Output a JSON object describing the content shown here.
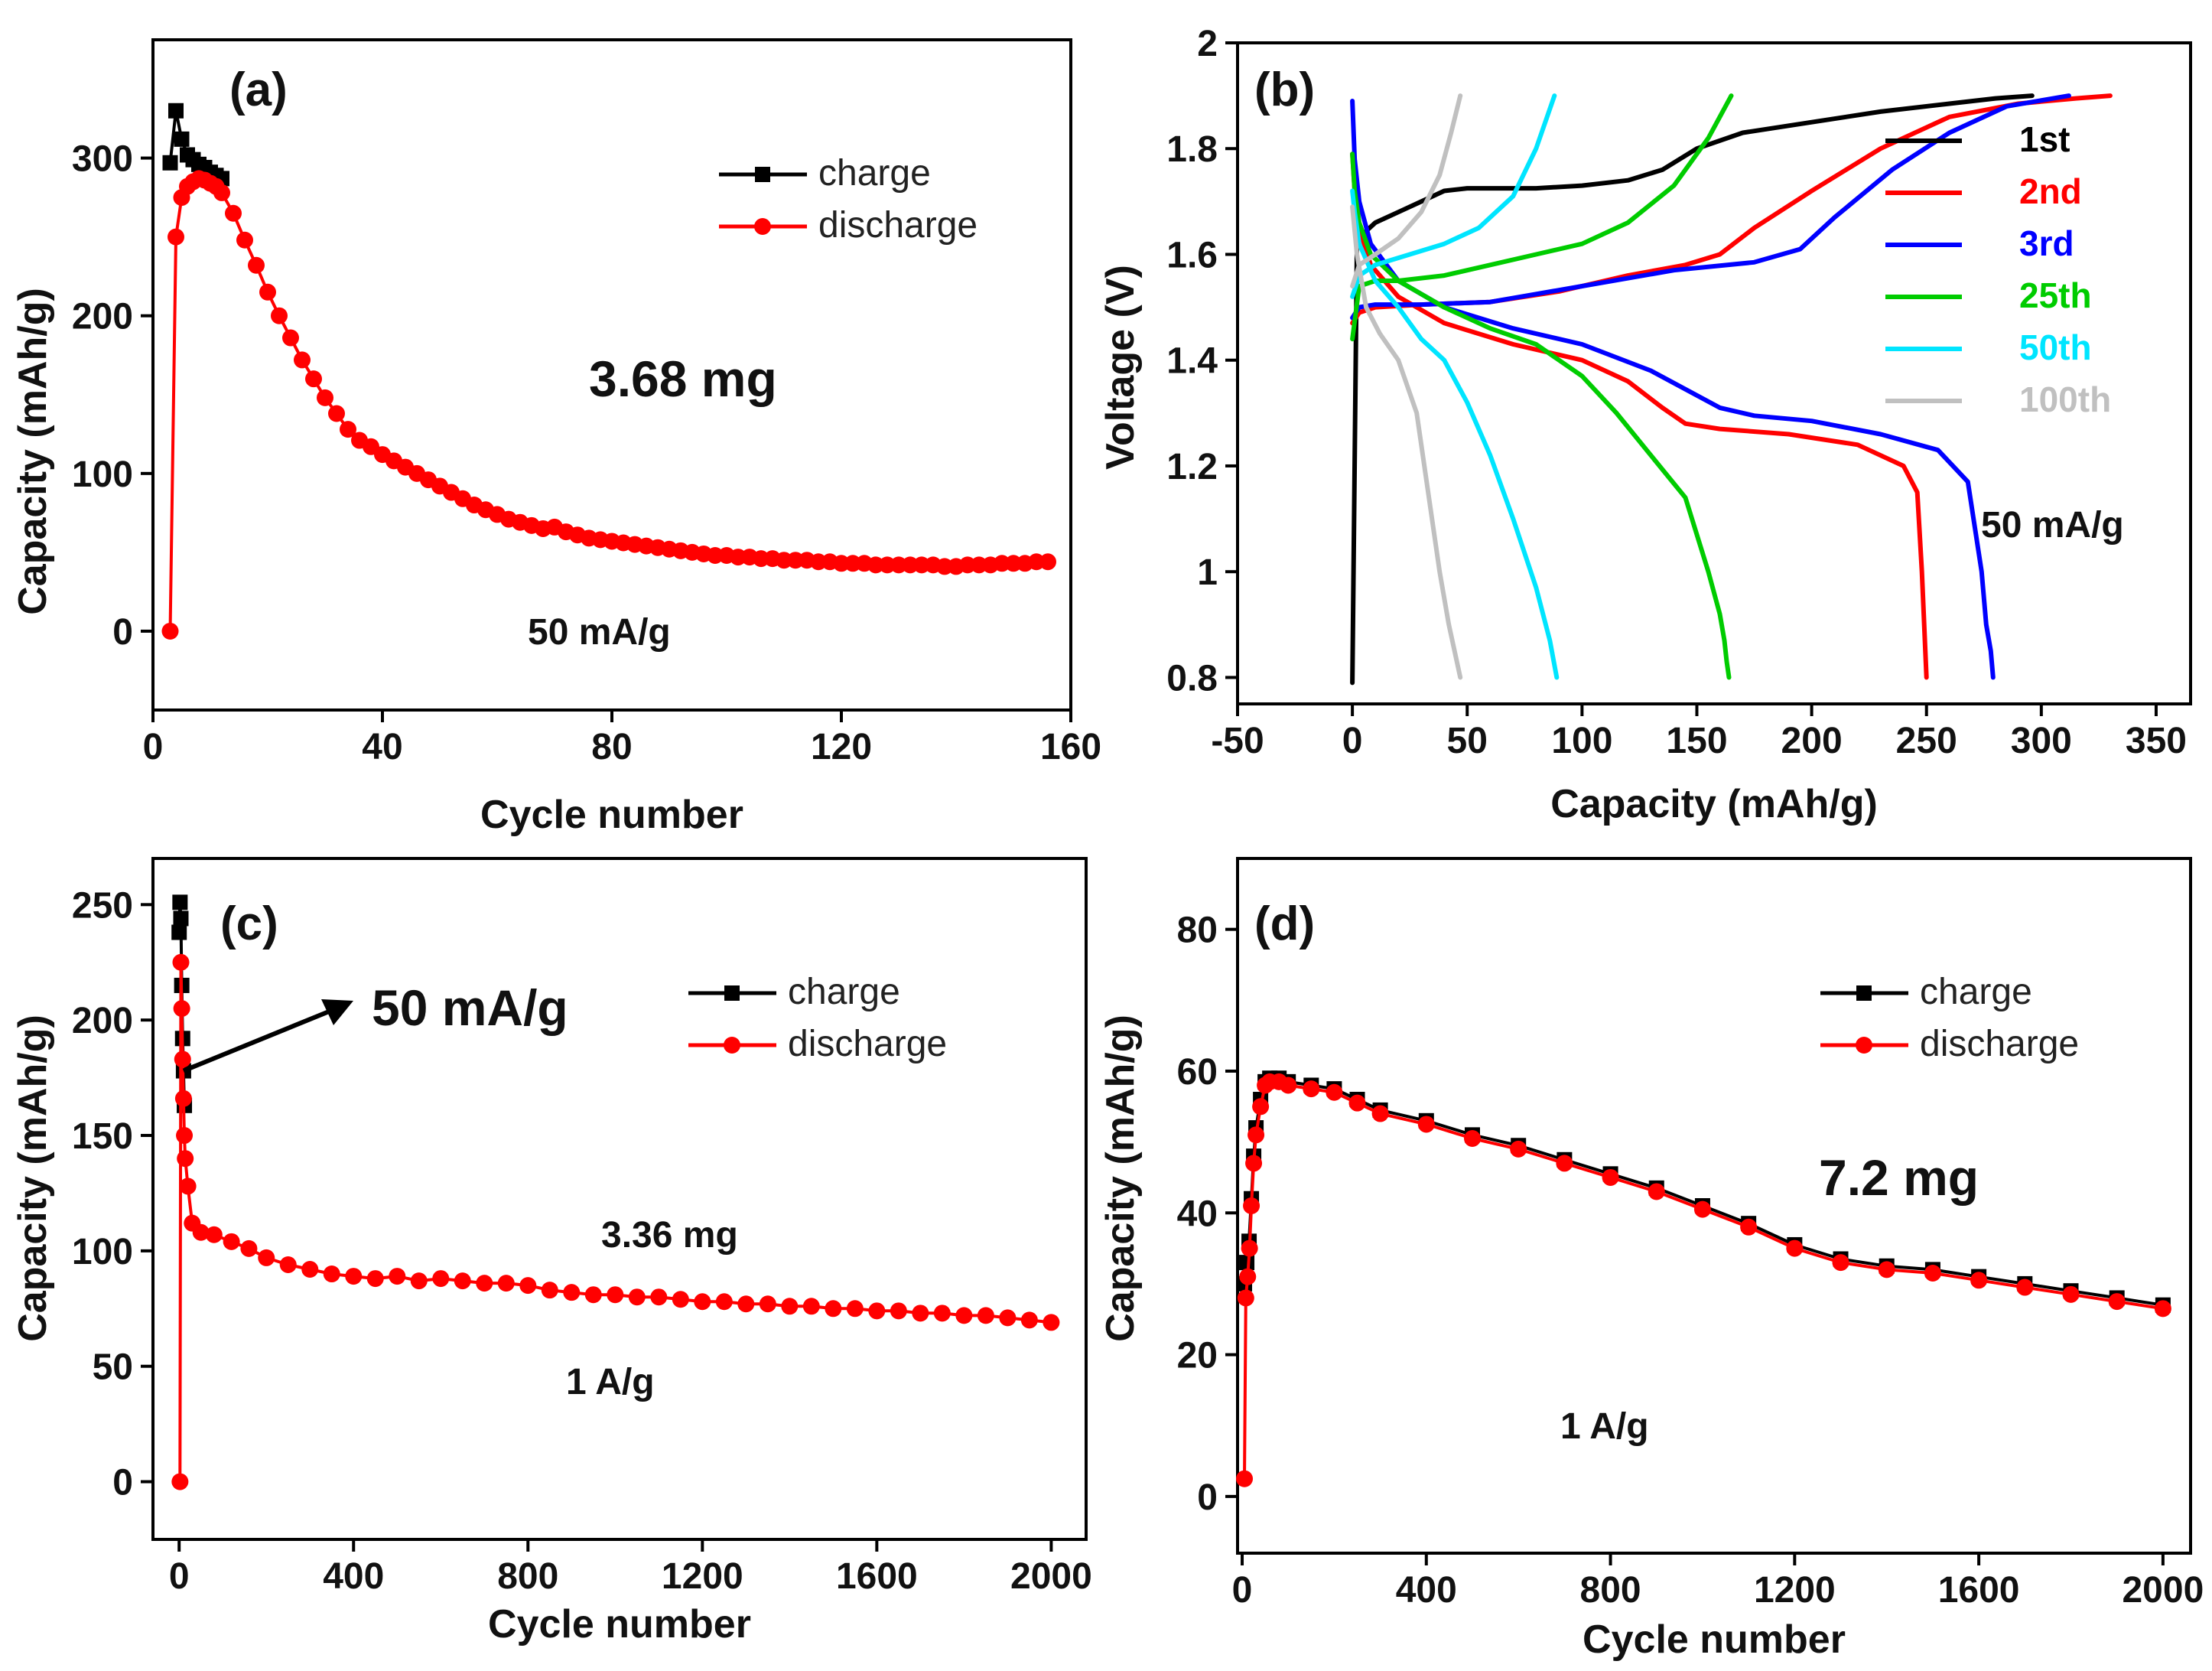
{
  "chart_data": [
    {
      "id": "a",
      "type": "scatter",
      "panel_label": "(a)",
      "xlabel": "Cycle number",
      "ylabel": "Capacity (mAh/g)",
      "xlim": [
        0,
        160
      ],
      "ylim": [
        -50,
        375
      ],
      "xticks": [
        0,
        40,
        80,
        120,
        160
      ],
      "yticks": [
        0,
        100,
        200,
        300
      ],
      "legend": [
        "charge",
        "discharge"
      ],
      "legend_position": "top-right",
      "annotations": [
        "3.68  mg",
        "50 mA/g"
      ],
      "series": [
        {
          "name": "charge",
          "color": "#000000",
          "marker": "square",
          "x": [
            3,
            4,
            5,
            6,
            7,
            8,
            9,
            10,
            11,
            12
          ],
          "y": [
            297,
            330,
            312,
            302,
            299,
            296,
            294,
            291,
            289,
            287
          ]
        },
        {
          "name": "discharge",
          "color": "#ff0000",
          "marker": "circle",
          "x": [
            3,
            4,
            5,
            6,
            7,
            8,
            9,
            10,
            11,
            12,
            14,
            16,
            18,
            20,
            22,
            24,
            26,
            28,
            30,
            32,
            34,
            36,
            38,
            40,
            42,
            44,
            46,
            48,
            50,
            52,
            54,
            56,
            58,
            60,
            62,
            64,
            66,
            68,
            70,
            72,
            74,
            76,
            78,
            80,
            82,
            84,
            86,
            88,
            90,
            92,
            94,
            96,
            98,
            100,
            102,
            104,
            106,
            108,
            110,
            112,
            114,
            116,
            118,
            120,
            122,
            124,
            126,
            128,
            130,
            132,
            134,
            136,
            138,
            140,
            142,
            144,
            146,
            148,
            150,
            152,
            154,
            156
          ],
          "y": [
            0,
            250,
            275,
            282,
            285,
            287,
            286,
            284,
            282,
            278,
            265,
            248,
            232,
            215,
            200,
            186,
            172,
            160,
            148,
            138,
            128,
            121,
            117,
            112,
            108,
            104,
            100,
            96,
            92,
            88,
            84,
            80,
            77,
            74,
            71,
            69,
            67,
            65,
            66,
            63,
            61,
            59,
            58,
            57,
            56,
            55,
            54,
            53,
            52,
            51,
            50,
            49,
            48,
            48,
            47,
            47,
            46,
            46,
            45,
            45,
            45,
            44,
            44,
            43,
            43,
            43,
            42,
            42,
            42,
            42,
            42,
            42,
            41,
            41,
            42,
            42,
            42,
            43,
            43,
            43,
            44,
            44
          ]
        }
      ]
    },
    {
      "id": "b",
      "type": "line",
      "panel_label": "(b)",
      "xlabel": "Capacity  (mAh/g)",
      "ylabel": "Voltage (V)",
      "xlim": [
        -50,
        365
      ],
      "ylim": [
        0.75,
        2.0
      ],
      "xticks": [
        -50,
        0,
        50,
        100,
        150,
        200,
        250,
        300,
        350
      ],
      "yticks": [
        0.8,
        1.0,
        1.2,
        1.4,
        1.6,
        1.8,
        2.0
      ],
      "annotations": [
        "50 mA/g"
      ],
      "legend_position": "right",
      "series": [
        {
          "name": "1st",
          "color": "#000000",
          "charge": {
            "x": [
              0,
              2,
              5,
              10,
              20,
              30,
              40,
              50,
              60,
              80,
              100,
              120,
              135,
              150,
              170,
              200,
              230,
              260,
              280,
              296
            ],
            "y": [
              0.79,
              1.62,
              1.64,
              1.66,
              1.68,
              1.7,
              1.72,
              1.725,
              1.725,
              1.725,
              1.73,
              1.74,
              1.76,
              1.8,
              1.83,
              1.85,
              1.87,
              1.885,
              1.895,
              1.9
            ]
          },
          "discharge": {
            "x": [],
            "y": []
          }
        },
        {
          "name": "2nd",
          "color": "#ff0000",
          "charge": {
            "x": [
              0,
              3,
              10,
              30,
              60,
              90,
              120,
              145,
              160,
              175,
              200,
              230,
              260,
              290,
              315,
              330
            ],
            "y": [
              1.47,
              1.49,
              1.5,
              1.505,
              1.51,
              1.53,
              1.56,
              1.58,
              1.6,
              1.65,
              1.72,
              1.8,
              1.86,
              1.885,
              1.895,
              1.9
            ]
          },
          "discharge": {
            "x": [
              0,
              1,
              3,
              8,
              20,
              40,
              70,
              100,
              120,
              135,
              145,
              160,
              190,
              220,
              240,
              246,
              248,
              249,
              250
            ],
            "y": [
              1.79,
              1.72,
              1.65,
              1.58,
              1.52,
              1.47,
              1.43,
              1.4,
              1.36,
              1.31,
              1.28,
              1.27,
              1.26,
              1.24,
              1.2,
              1.15,
              1.0,
              0.9,
              0.8
            ]
          }
        },
        {
          "name": "3rd",
          "color": "#0000ff",
          "charge": {
            "x": [
              0,
              3,
              10,
              30,
              60,
              100,
              140,
              175,
              195,
              210,
              235,
              260,
              285,
              312
            ],
            "y": [
              1.48,
              1.5,
              1.505,
              1.505,
              1.51,
              1.54,
              1.57,
              1.585,
              1.61,
              1.67,
              1.76,
              1.83,
              1.88,
              1.9
            ]
          },
          "discharge": {
            "x": [
              0,
              1,
              3,
              8,
              20,
              40,
              70,
              100,
              130,
              160,
              175,
              200,
              230,
              255,
              268,
              274,
              276,
              278,
              279
            ],
            "y": [
              1.89,
              1.78,
              1.7,
              1.62,
              1.55,
              1.5,
              1.46,
              1.43,
              1.38,
              1.31,
              1.295,
              1.285,
              1.26,
              1.23,
              1.17,
              1.0,
              0.9,
              0.85,
              0.8
            ]
          }
        },
        {
          "name": "25th",
          "color": "#00cc00",
          "charge": {
            "x": [
              0,
              3,
              10,
              20,
              40,
              60,
              80,
              100,
              120,
              140,
              155,
              165
            ],
            "y": [
              1.44,
              1.54,
              1.55,
              1.55,
              1.56,
              1.58,
              1.6,
              1.62,
              1.66,
              1.73,
              1.82,
              1.9
            ]
          },
          "discharge": {
            "x": [
              0,
              1,
              3,
              8,
              20,
              40,
              60,
              80,
              100,
              115,
              130,
              145,
              155,
              160,
              162,
              163,
              164
            ],
            "y": [
              1.79,
              1.72,
              1.66,
              1.6,
              1.55,
              1.5,
              1.46,
              1.43,
              1.37,
              1.3,
              1.22,
              1.14,
              1.0,
              0.92,
              0.87,
              0.83,
              0.8
            ]
          }
        },
        {
          "name": "50th",
          "color": "#00e5ff",
          "charge": {
            "x": [
              0,
              3,
              10,
              25,
              40,
              55,
              70,
              80,
              88
            ],
            "y": [
              1.52,
              1.56,
              1.58,
              1.6,
              1.62,
              1.65,
              1.71,
              1.8,
              1.9
            ]
          },
          "discharge": {
            "x": [
              0,
              1,
              3,
              10,
              20,
              30,
              40,
              50,
              60,
              70,
              80,
              86,
              89
            ],
            "y": [
              1.72,
              1.68,
              1.62,
              1.55,
              1.5,
              1.44,
              1.4,
              1.32,
              1.22,
              1.1,
              0.97,
              0.87,
              0.8
            ]
          }
        },
        {
          "name": "100th",
          "color": "#c0c0c0",
          "charge": {
            "x": [
              0,
              3,
              10,
              20,
              30,
              38,
              43,
              47
            ],
            "y": [
              1.54,
              1.58,
              1.6,
              1.63,
              1.68,
              1.75,
              1.83,
              1.9
            ]
          },
          "discharge": {
            "x": [
              0,
              2,
              6,
              12,
              20,
              28,
              33,
              38,
              42,
              45,
              47
            ],
            "y": [
              1.69,
              1.6,
              1.5,
              1.45,
              1.4,
              1.3,
              1.15,
              1.0,
              0.9,
              0.84,
              0.8
            ]
          }
        }
      ]
    },
    {
      "id": "c",
      "type": "scatter",
      "panel_label": "(c)",
      "xlabel": "Cycle number",
      "ylabel": "Capacity (mAh/g)",
      "xlim": [
        -60,
        2080
      ],
      "ylim": [
        -25,
        270
      ],
      "xticks": [
        0,
        400,
        800,
        1200,
        1600,
        2000
      ],
      "yticks": [
        0,
        50,
        100,
        150,
        200,
        250
      ],
      "legend": [
        "charge",
        "discharge"
      ],
      "legend_position": "top-right",
      "annotations": [
        "50  mA/g",
        "3.36  mg",
        "1 A/g"
      ],
      "series": [
        {
          "name": "charge",
          "color": "#000000",
          "marker": "square",
          "x": [
            0,
            2,
            4,
            6,
            8,
            10,
            12
          ],
          "y": [
            238,
            251,
            244,
            215,
            192,
            178,
            163
          ]
        },
        {
          "name": "discharge",
          "color": "#ff0000",
          "marker": "circle",
          "x": [
            2,
            4,
            6,
            8,
            10,
            12,
            14,
            20,
            30,
            50,
            80,
            120,
            160,
            200,
            250,
            300,
            350,
            400,
            450,
            500,
            550,
            600,
            650,
            700,
            750,
            800,
            850,
            900,
            950,
            1000,
            1050,
            1100,
            1150,
            1200,
            1250,
            1300,
            1350,
            1400,
            1450,
            1500,
            1550,
            1600,
            1650,
            1700,
            1750,
            1800,
            1850,
            1900,
            1950,
            2000
          ],
          "y": [
            0,
            225,
            205,
            183,
            166,
            150,
            140,
            128,
            112,
            108,
            107,
            104,
            101,
            97,
            94,
            92,
            90,
            89,
            88,
            89,
            87,
            88,
            87,
            86,
            86,
            85,
            83,
            82,
            81,
            81,
            80,
            80,
            79,
            78,
            78,
            77,
            77,
            76,
            76,
            75,
            75,
            74,
            74,
            73,
            73,
            72,
            72,
            71,
            70,
            69
          ]
        }
      ]
    },
    {
      "id": "d",
      "type": "scatter",
      "panel_label": "(d)",
      "xlabel": "Cycle number",
      "ylabel": "Capacity (mAh/g)",
      "xlim": [
        -10,
        2060
      ],
      "ylim": [
        -8,
        90
      ],
      "xticks": [
        0,
        400,
        800,
        1200,
        1600,
        2000
      ],
      "yticks": [
        0,
        20,
        40,
        60,
        80
      ],
      "legend": [
        "charge",
        "discharge"
      ],
      "legend_position": "top-right",
      "annotations": [
        "7.2  mg",
        "1 A/g"
      ],
      "series": [
        {
          "name": "charge",
          "color": "#000000",
          "marker": "square",
          "x": [
            5,
            10,
            15,
            20,
            25,
            30,
            40,
            50,
            60,
            80,
            100,
            150,
            200,
            250,
            300,
            400,
            500,
            600,
            700,
            800,
            900,
            1000,
            1100,
            1200,
            1300,
            1400,
            1500,
            1600,
            1700,
            1800,
            1900,
            2000
          ],
          "y": [
            30,
            33,
            36,
            42,
            48,
            52,
            56,
            58.5,
            59,
            59,
            58.5,
            58,
            57.5,
            56,
            54.5,
            53,
            51,
            49.5,
            47.5,
            45.5,
            43.5,
            41,
            38.5,
            35.5,
            33.5,
            32.5,
            32,
            31,
            30,
            29,
            28,
            27
          ]
        },
        {
          "name": "discharge",
          "color": "#ff0000",
          "marker": "circle",
          "x": [
            5,
            8,
            12,
            16,
            20,
            25,
            30,
            40,
            50,
            60,
            80,
            100,
            150,
            200,
            250,
            300,
            400,
            500,
            600,
            700,
            800,
            900,
            1000,
            1100,
            1200,
            1300,
            1400,
            1500,
            1600,
            1700,
            1800,
            1900,
            2000
          ],
          "y": [
            2.5,
            28,
            31,
            35,
            41,
            47,
            51,
            55,
            58,
            58.5,
            58.5,
            58,
            57.5,
            57,
            55.5,
            54,
            52.5,
            50.5,
            49,
            47,
            45,
            43,
            40.5,
            38,
            35,
            33,
            32,
            31.5,
            30.5,
            29.5,
            28.5,
            27.5,
            26.5
          ]
        }
      ]
    }
  ]
}
